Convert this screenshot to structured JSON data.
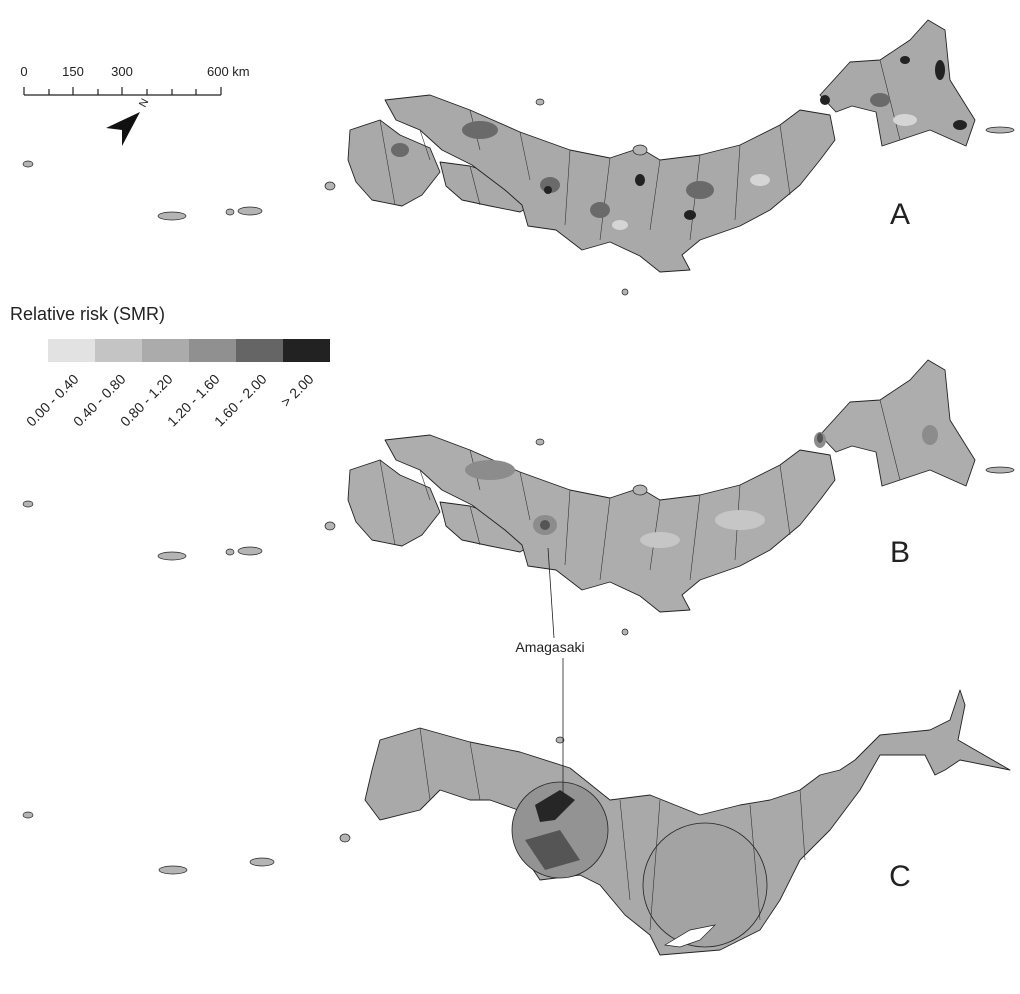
{
  "scale_bar": {
    "labels": [
      "0",
      "150",
      "300",
      "600 km"
    ]
  },
  "north_arrow": {
    "label": "N"
  },
  "legend": {
    "title": "Relative risk (SMR)",
    "items": [
      {
        "label": "0.00 - 0.40",
        "color": "#e2e2e2"
      },
      {
        "label": "0.40 - 0.80",
        "color": "#c4c4c4"
      },
      {
        "label": "0.80 - 1.20",
        "color": "#ababab"
      },
      {
        "label": "1.20 - 1.60",
        "color": "#909090"
      },
      {
        "label": "1.60 - 2.00",
        "color": "#656565"
      },
      {
        "label": "> 2.00",
        "color": "#222222"
      }
    ]
  },
  "panels": [
    {
      "label": "A"
    },
    {
      "label": "B"
    },
    {
      "label": "C"
    }
  ],
  "annotation": {
    "label": "Amagasaki"
  }
}
